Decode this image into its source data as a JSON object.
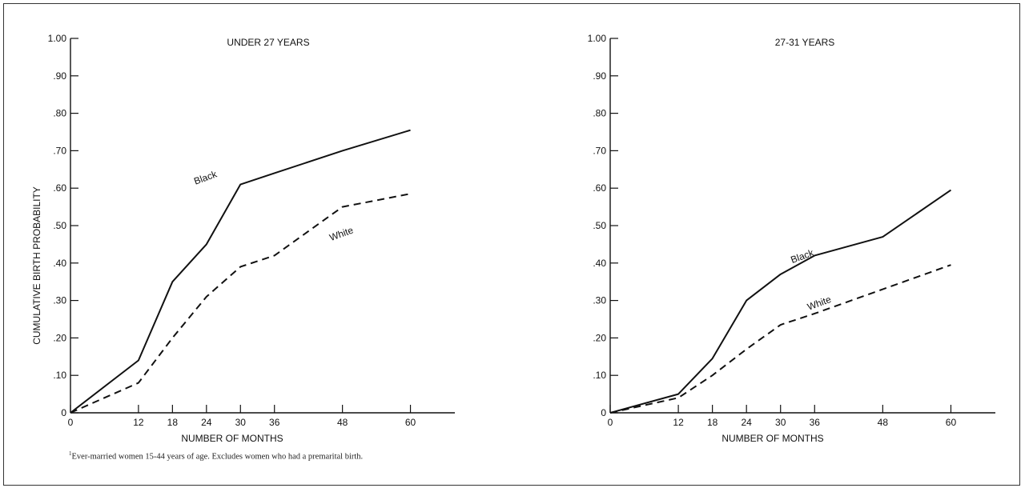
{
  "figure": {
    "footnote_marker": "1",
    "footnote": "Ever-married women 15-44 years of age.  Excludes women who had a premarital birth."
  },
  "chart_data": [
    {
      "type": "line",
      "title": "UNDER 27 YEARS",
      "xlabel": "NUMBER OF MONTHS",
      "ylabel": "CUMULATIVE BIRTH PROBABILITY",
      "xlim": [
        0,
        66
      ],
      "ylim": [
        0,
        1.0
      ],
      "xticks": [
        0,
        12,
        18,
        24,
        30,
        36,
        48,
        60
      ],
      "yticks": [
        0,
        0.1,
        0.2,
        0.3,
        0.4,
        0.5,
        0.6,
        0.7,
        0.8,
        0.9,
        1.0
      ],
      "ytick_labels": [
        "0",
        ".10",
        ".20",
        ".30",
        ".40",
        ".50",
        ".60",
        ".70",
        ".80",
        ".90",
        "1.00"
      ],
      "series": [
        {
          "name": "Black",
          "style": "solid",
          "x": [
            0,
            12,
            18,
            24,
            30,
            36,
            48,
            60
          ],
          "y": [
            0,
            0.14,
            0.35,
            0.45,
            0.61,
            0.64,
            0.7,
            0.755
          ]
        },
        {
          "name": "White",
          "style": "dashed",
          "x": [
            0,
            12,
            18,
            24,
            30,
            36,
            48,
            60
          ],
          "y": [
            0,
            0.08,
            0.2,
            0.31,
            0.39,
            0.42,
            0.55,
            0.585
          ]
        }
      ]
    },
    {
      "type": "line",
      "title": "27-31 YEARS",
      "xlabel": "NUMBER OF MONTHS",
      "ylabel": "",
      "xlim": [
        0,
        66
      ],
      "ylim": [
        0,
        1.0
      ],
      "xticks": [
        0,
        12,
        18,
        24,
        30,
        36,
        48,
        60
      ],
      "yticks": [
        0,
        0.1,
        0.2,
        0.3,
        0.4,
        0.5,
        0.6,
        0.7,
        0.8,
        0.9,
        1.0
      ],
      "ytick_labels": [
        "0",
        ".10",
        ".20",
        ".30",
        ".40",
        ".50",
        ".60",
        ".70",
        ".80",
        ".90",
        "1.00"
      ],
      "series": [
        {
          "name": "Black",
          "style": "solid",
          "x": [
            0,
            12,
            18,
            24,
            30,
            36,
            48,
            60
          ],
          "y": [
            0,
            0.05,
            0.145,
            0.3,
            0.37,
            0.42,
            0.47,
            0.595
          ]
        },
        {
          "name": "White",
          "style": "dashed",
          "x": [
            0,
            12,
            18,
            24,
            30,
            36,
            48,
            60
          ],
          "y": [
            0,
            0.04,
            0.1,
            0.17,
            0.235,
            0.265,
            0.33,
            0.395
          ]
        }
      ]
    }
  ]
}
